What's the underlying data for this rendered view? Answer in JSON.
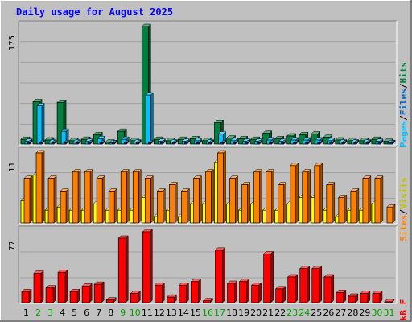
{
  "chart_data": [
    {
      "type": "bar",
      "panel": "hits-files-pages",
      "title": "Daily usage for August 2025",
      "ymax_label": "175",
      "legend": [
        "Pages",
        "/",
        "Files",
        "/",
        "Hits"
      ],
      "categories": [
        "1",
        "2",
        "3",
        "4",
        "5",
        "6",
        "7",
        "8",
        "9",
        "10",
        "11",
        "12",
        "13",
        "14",
        "15",
        "16",
        "17",
        "18",
        "19",
        "20",
        "21",
        "22",
        "23",
        "24",
        "25",
        "26",
        "27",
        "28",
        "29",
        "30",
        "31"
      ],
      "series": [
        {
          "name": "Hits",
          "color": "#008040",
          "values": [
            7,
            63,
            6,
            62,
            5,
            7,
            14,
            3,
            19,
            5,
            175,
            7,
            5,
            7,
            8,
            5,
            32,
            9,
            8,
            7,
            16,
            8,
            12,
            14,
            15,
            10,
            6,
            5,
            5,
            7,
            4
          ]
        },
        {
          "name": "Files",
          "color": "#0080ff",
          "values": [
            4,
            57,
            3,
            19,
            3,
            4,
            8,
            2,
            7,
            3,
            73,
            4,
            3,
            4,
            5,
            3,
            15,
            5,
            4,
            4,
            6,
            4,
            6,
            6,
            6,
            5,
            3,
            3,
            3,
            4,
            2
          ]
        },
        {
          "name": "Pages",
          "color": "#00c0ff",
          "values": [
            2,
            2,
            2,
            2,
            2,
            2,
            2,
            2,
            2,
            2,
            2,
            2,
            2,
            2,
            2,
            2,
            2,
            2,
            2,
            2,
            2,
            2,
            2,
            2,
            2,
            2,
            2,
            2,
            2,
            2,
            2
          ]
        }
      ]
    },
    {
      "type": "bar",
      "panel": "visits-sites",
      "ymax_label": "11",
      "legend": [
        "Sites",
        "/",
        "Visits"
      ],
      "series": [
        {
          "name": "Visits",
          "color": "#ffff00",
          "values": [
            3.5,
            7.5,
            2,
            2.5,
            2,
            2,
            3,
            2,
            2,
            2,
            4,
            1,
            2,
            1,
            3,
            3,
            9.5,
            3,
            2,
            3,
            2,
            2,
            3,
            4,
            4,
            2,
            1,
            2,
            2,
            3,
            0
          ]
        },
        {
          "name": "Sites",
          "color": "#ff8000",
          "values": [
            7,
            11,
            7,
            5,
            8,
            8,
            7,
            5,
            8,
            8,
            7,
            5,
            6,
            5,
            7,
            8,
            11,
            7,
            6,
            8,
            8,
            6,
            9,
            8,
            9,
            6,
            4,
            5,
            7,
            7,
            2.5
          ]
        }
      ]
    },
    {
      "type": "bar",
      "panel": "kbytes",
      "ymax_label": "77",
      "legend": [
        "kB F"
      ],
      "series": [
        {
          "name": "kB F",
          "color": "#ff0000",
          "values": [
            12,
            32,
            16,
            33,
            12,
            18,
            20,
            3,
            70,
            10,
            77,
            19,
            6,
            19,
            23,
            2,
            57,
            21,
            23,
            19,
            53,
            15,
            28,
            37,
            37,
            28,
            11,
            7,
            10,
            10,
            1
          ]
        }
      ]
    }
  ],
  "colors": {
    "background": "#ffffff",
    "frame": "#c0c0c0",
    "plot_bg": "#c0c0c0",
    "grid": "#a0a0a0",
    "title_text": "#0000ff",
    "weekend_label": "#00a000"
  },
  "weekend_days": [
    2,
    3,
    9,
    10,
    16,
    17,
    23,
    24,
    30,
    31
  ]
}
